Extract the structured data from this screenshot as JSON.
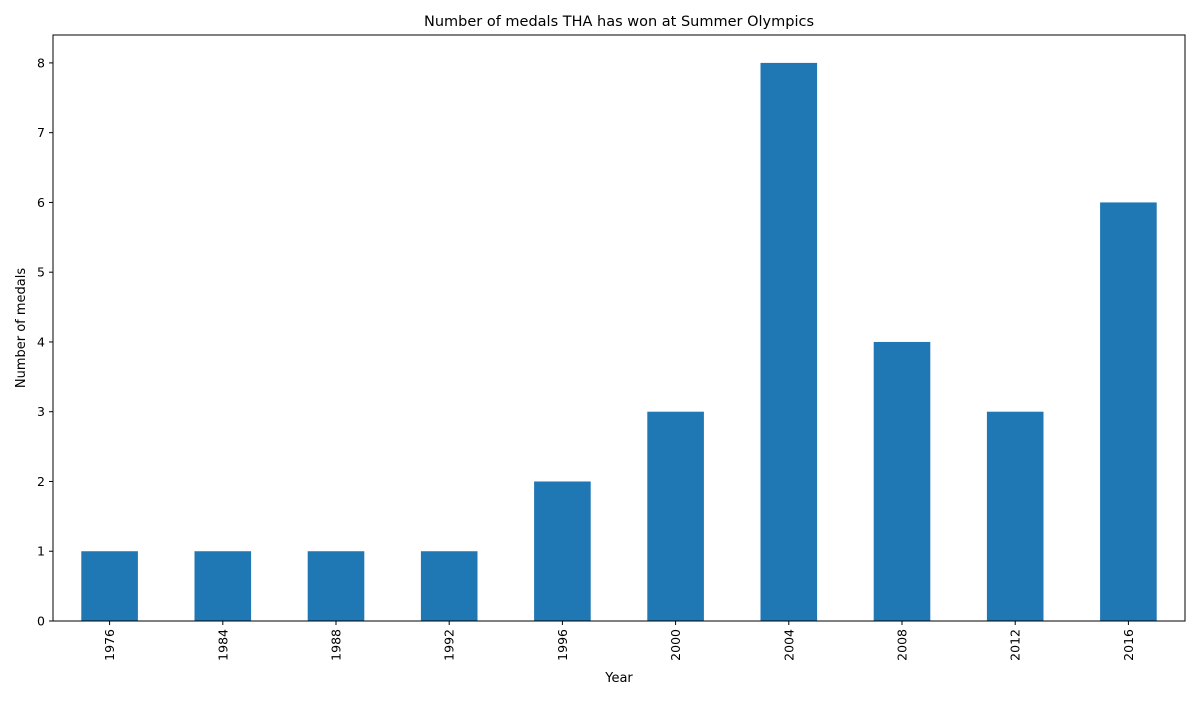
{
  "chart_data": {
    "type": "bar",
    "title": "Number of medals THA has won at Summer Olympics",
    "xlabel": "Year",
    "ylabel": "Number of medals",
    "categories": [
      "1976",
      "1984",
      "1988",
      "1992",
      "1996",
      "2000",
      "2004",
      "2008",
      "2012",
      "2016"
    ],
    "values": [
      1,
      1,
      1,
      1,
      2,
      3,
      8,
      4,
      3,
      6
    ],
    "ylim": [
      0,
      8.4
    ],
    "yticks": [
      0,
      1,
      2,
      3,
      4,
      5,
      6,
      7,
      8
    ],
    "grid": false,
    "legend": "none",
    "bar_color": "#1f77b4"
  }
}
